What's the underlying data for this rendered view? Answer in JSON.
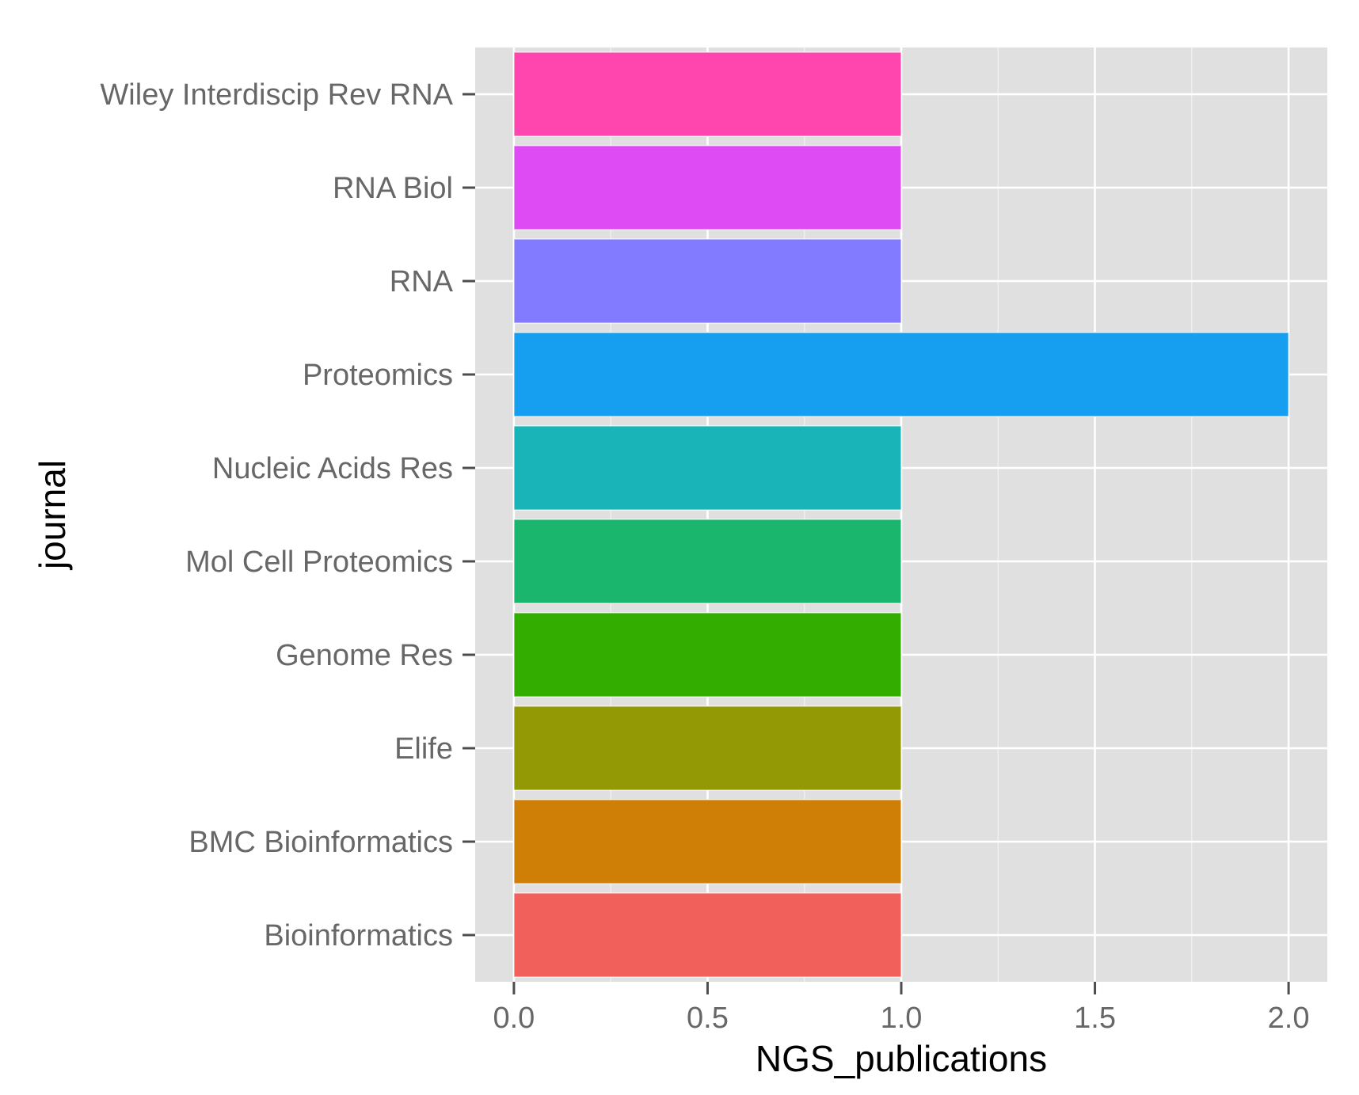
{
  "chart_data": {
    "type": "bar",
    "orientation": "horizontal",
    "xlabel": "NGS_publications",
    "ylabel": "journal",
    "xlim": [
      -0.1,
      2.1
    ],
    "x_ticks": [
      "0.0",
      "0.5",
      "1.0",
      "1.5",
      "2.0"
    ],
    "x_tick_values": [
      0,
      0.5,
      1.0,
      1.5,
      2.0
    ],
    "grid": true,
    "legend": "none",
    "categories": [
      "Bioinformatics",
      "BMC Bioinformatics",
      "Elife",
      "Genome Res",
      "Mol Cell Proteomics",
      "Nucleic Acids Res",
      "Proteomics",
      "RNA",
      "RNA Biol",
      "Wiley Interdiscip Rev RNA"
    ],
    "values": [
      1,
      1,
      1,
      1,
      1,
      1,
      2,
      1,
      1,
      1
    ],
    "colors": [
      "#F2605B",
      "#CF7F06",
      "#929904",
      "#33AD00",
      "#1AB66E",
      "#19B4B8",
      "#169EF0",
      "#837BFF",
      "#DE4AF3",
      "#FF46AE"
    ],
    "panel_color": "#E0E0E0",
    "gridline_color": "#FFFFFF"
  }
}
